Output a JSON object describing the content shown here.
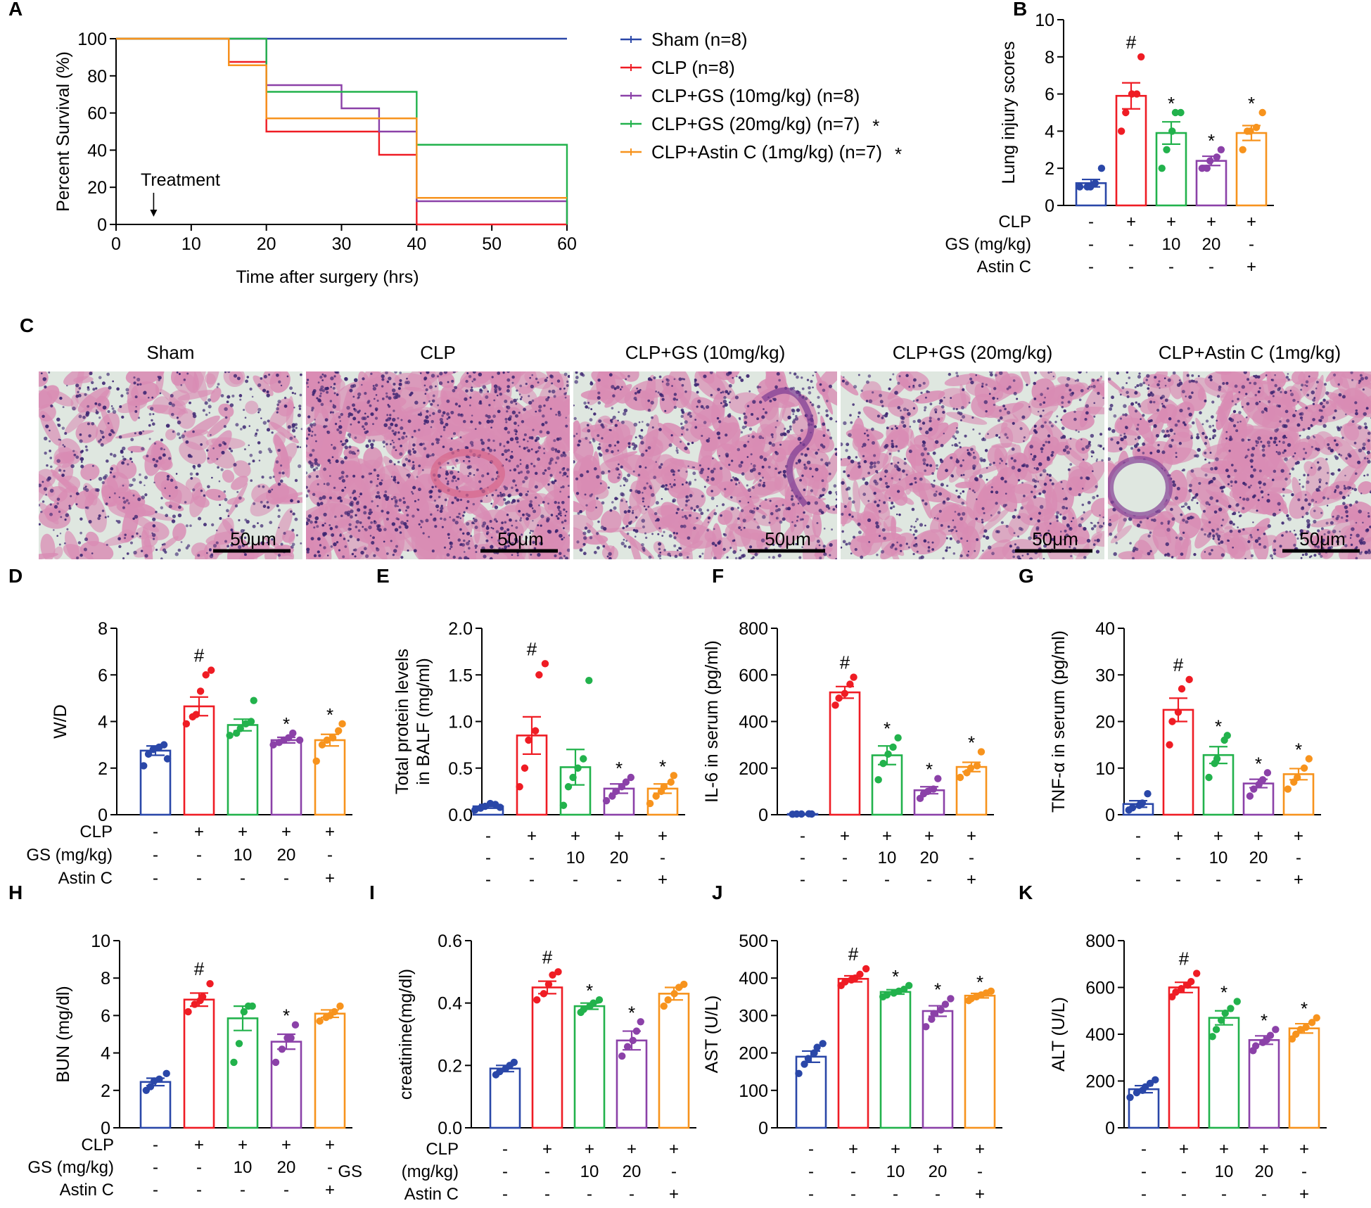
{
  "colors": {
    "Sham": "#2a47a8",
    "CLP": "#ef1c24",
    "GS10": "#8b41a8",
    "GS20": "#22b24c",
    "Astin": "#f7931d",
    "tissue_bg": "#dfe7e0",
    "tissue_pink": "#d98cb4",
    "tissue_nuclei": "#3b2470",
    "vessel": "#d7668a"
  },
  "design_rows": {
    "labels": [
      "CLP",
      "GS (mg/kg)",
      "Astin C"
    ],
    "labels_split": [
      "GS",
      "(mg/kg)"
    ],
    "rows": [
      [
        "-",
        "+",
        "+",
        "+",
        "+"
      ],
      [
        "-",
        "-",
        "10",
        "20",
        "-"
      ],
      [
        "-",
        "-",
        "-",
        "-",
        "+"
      ]
    ]
  },
  "panel_c": {
    "label": "C",
    "scale_bar": "50μm",
    "titles": [
      "Sham",
      "CLP",
      "CLP+GS (10mg/kg)",
      "CLP+GS (20mg/kg)",
      "CLP+Astin C (1mg/kg)"
    ],
    "densities": [
      0.3,
      0.85,
      0.5,
      0.45,
      0.55
    ]
  },
  "chart_data": [
    {
      "id": "A",
      "type": "line",
      "label": "A",
      "xlabel": "Time after surgery (hrs)",
      "ylabel": "Percent  Survival (%)",
      "xlim": [
        0,
        60
      ],
      "ylim": [
        0,
        100
      ],
      "xticks": [
        0,
        10,
        20,
        30,
        40,
        50,
        60
      ],
      "yticks": [
        0,
        20,
        40,
        60,
        80,
        100
      ],
      "annotation": {
        "text": "Treatment",
        "x": 5
      },
      "series": [
        {
          "name": "Sham (n=8)",
          "color_key": "Sham",
          "star": "",
          "x": [
            0,
            60
          ],
          "y": [
            100,
            100
          ]
        },
        {
          "name": "CLP (n=8)",
          "color_key": "CLP",
          "star": "",
          "x": [
            0,
            15,
            20,
            35,
            40,
            60
          ],
          "y": [
            100,
            87.5,
            50,
            37.5,
            0,
            0
          ]
        },
        {
          "name": "CLP+GS (10mg/kg) (n=8)",
          "color_key": "GS10",
          "star": "",
          "x": [
            0,
            20,
            30,
            35,
            40,
            60
          ],
          "y": [
            100,
            75,
            62.5,
            50,
            12.5,
            0
          ]
        },
        {
          "name": "CLP+GS (20mg/kg) (n=7)",
          "color_key": "GS20",
          "star": "*",
          "x": [
            0,
            20,
            40,
            60
          ],
          "y": [
            100,
            71.4,
            42.9,
            0
          ]
        },
        {
          "name": "CLP+Astin C (1mg/kg) (n=7)",
          "color_key": "Astin",
          "star": "*",
          "x": [
            0,
            15,
            20,
            40,
            60
          ],
          "y": [
            100,
            85.7,
            57.1,
            14.3,
            14.3
          ]
        }
      ]
    },
    {
      "id": "B",
      "type": "bar",
      "label": "B",
      "ylabel": "Lung injury scores",
      "ylim": [
        0,
        10
      ],
      "yticks": [
        0,
        2,
        4,
        6,
        8,
        10
      ],
      "values": [
        1.2,
        5.9,
        3.9,
        2.4,
        3.9
      ],
      "sem": [
        0.2,
        0.7,
        0.6,
        0.25,
        0.4
      ],
      "points": [
        [
          1,
          1,
          1,
          1.2,
          2
        ],
        [
          4,
          5,
          6,
          6,
          8
        ],
        [
          2,
          3,
          4,
          5,
          5
        ],
        [
          2,
          2,
          2.4,
          2.6,
          3
        ],
        [
          3,
          4,
          4,
          4.2,
          5
        ]
      ],
      "sig": [
        "",
        "#",
        "*",
        "*",
        "*"
      ],
      "rowlabel_style": "plain"
    },
    {
      "id": "D",
      "type": "bar",
      "label": "D",
      "ylabel": "W/D",
      "ylim": [
        0,
        8
      ],
      "yticks": [
        0,
        2,
        4,
        6,
        8
      ],
      "values": [
        2.75,
        4.65,
        3.85,
        3.2,
        3.2
      ],
      "sem": [
        0.2,
        0.4,
        0.25,
        0.12,
        0.25
      ],
      "points": [
        [
          2.1,
          2.6,
          2.8,
          2.9,
          3.0,
          2.4
        ],
        [
          3.9,
          4.2,
          4.3,
          5.3,
          6.0,
          6.2
        ],
        [
          3.4,
          3.5,
          3.7,
          3.9,
          4.0,
          4.9
        ],
        [
          3.0,
          3.1,
          3.2,
          3.3,
          3.5,
          3.2
        ],
        [
          2.3,
          3.0,
          3.2,
          3.3,
          3.6,
          3.9
        ]
      ],
      "sig": [
        "",
        "#",
        "",
        "*",
        "*"
      ],
      "rowlabel_style": "plain"
    },
    {
      "id": "E",
      "type": "bar",
      "label": "E",
      "ylabel": "Total protein levels in BALF (mg/ml)",
      "ylim": [
        0,
        2.0
      ],
      "yticks": [
        0.0,
        0.5,
        1.0,
        1.5,
        2.0
      ],
      "values": [
        0.09,
        0.85,
        0.51,
        0.28,
        0.28
      ],
      "sem": [
        0.02,
        0.2,
        0.19,
        0.05,
        0.05
      ],
      "points": [
        [
          0.05,
          0.07,
          0.09,
          0.12,
          0.11,
          0.08
        ],
        [
          0.3,
          0.5,
          0.8,
          0.9,
          1.5,
          1.62
        ],
        [
          0.1,
          0.3,
          0.4,
          0.5,
          0.6,
          1.44
        ],
        [
          0.15,
          0.2,
          0.25,
          0.3,
          0.35,
          0.4
        ],
        [
          0.12,
          0.2,
          0.25,
          0.3,
          0.35,
          0.42
        ]
      ],
      "sig": [
        "",
        "#",
        "",
        "*",
        "*"
      ],
      "rowlabel_style": "none"
    },
    {
      "id": "F",
      "type": "bar",
      "label": "F",
      "ylabel": "IL-6 in serum (pg/ml)",
      "ylim": [
        0,
        800
      ],
      "yticks": [
        0,
        200,
        400,
        600,
        800
      ],
      "values": [
        3,
        525,
        255,
        105,
        205
      ],
      "sem": [
        1,
        25,
        40,
        15,
        20
      ],
      "points": [
        [
          2,
          3,
          3,
          4,
          3
        ],
        [
          470,
          500,
          520,
          560,
          590
        ],
        [
          150,
          220,
          260,
          290,
          330
        ],
        [
          70,
          90,
          100,
          110,
          155
        ],
        [
          160,
          180,
          200,
          210,
          270
        ]
      ],
      "sig": [
        "",
        "#",
        "*",
        "*",
        "*"
      ],
      "rowlabel_style": "none"
    },
    {
      "id": "G",
      "type": "bar",
      "label": "G",
      "ylabel": "TNF-α in serum (pg/ml)",
      "ylim": [
        0,
        40
      ],
      "yticks": [
        0,
        10,
        20,
        30,
        40
      ],
      "values": [
        2.3,
        22.5,
        12.8,
        6.7,
        8.7
      ],
      "sem": [
        0.7,
        2.5,
        1.8,
        0.9,
        1.2
      ],
      "points": [
        [
          1,
          1.5,
          2,
          2.5,
          4.5
        ],
        [
          15,
          20,
          22,
          27,
          29
        ],
        [
          8,
          11,
          12,
          16,
          17
        ],
        [
          4,
          5.5,
          6.5,
          7.5,
          9
        ],
        [
          5.5,
          7,
          8,
          10,
          12
        ]
      ],
      "sig": [
        "",
        "#",
        "*",
        "*",
        "*"
      ],
      "rowlabel_style": "none"
    },
    {
      "id": "H",
      "type": "bar",
      "label": "H",
      "ylabel": "BUN (mg/dl)",
      "ylim": [
        0,
        10
      ],
      "yticks": [
        0,
        2,
        4,
        6,
        8,
        10
      ],
      "values": [
        2.45,
        6.85,
        5.85,
        4.6,
        6.1
      ],
      "sem": [
        0.2,
        0.35,
        0.65,
        0.4,
        0.2
      ],
      "points": [
        [
          2.0,
          2.2,
          2.5,
          2.6,
          2.9
        ],
        [
          6.2,
          6.6,
          6.8,
          7.0,
          7.7
        ],
        [
          3.5,
          4.5,
          6.2,
          6.5,
          6.5
        ],
        [
          3.5,
          4.2,
          4.8,
          4.8,
          5.5
        ],
        [
          5.7,
          5.9,
          6.0,
          6.2,
          6.5
        ]
      ],
      "sig": [
        "",
        "#",
        "",
        "*",
        ""
      ],
      "rowlabel_style": "plain"
    },
    {
      "id": "I",
      "type": "bar",
      "label": "I",
      "ylabel": "creatinine(mg/dl)",
      "ylim": [
        0,
        0.6
      ],
      "yticks": [
        0.0,
        0.2,
        0.4,
        0.6
      ],
      "values": [
        0.19,
        0.45,
        0.39,
        0.28,
        0.43
      ],
      "sem": [
        0.01,
        0.02,
        0.01,
        0.03,
        0.02
      ],
      "points": [
        [
          0.17,
          0.18,
          0.19,
          0.2,
          0.21
        ],
        [
          0.41,
          0.43,
          0.46,
          0.49,
          0.5
        ],
        [
          0.37,
          0.38,
          0.39,
          0.4,
          0.41
        ],
        [
          0.23,
          0.26,
          0.28,
          0.31,
          0.34
        ],
        [
          0.39,
          0.41,
          0.43,
          0.45,
          0.46
        ]
      ],
      "sig": [
        "",
        "#",
        "*",
        "*",
        ""
      ],
      "rowlabel_style": "split"
    },
    {
      "id": "J",
      "type": "bar",
      "label": "J",
      "ylabel": "AST (U/L)",
      "ylim": [
        0,
        500
      ],
      "yticks": [
        0,
        100,
        200,
        300,
        400,
        500
      ],
      "values": [
        190,
        398,
        363,
        312,
        353
      ],
      "sem": [
        15,
        8,
        6,
        14,
        6
      ],
      "points": [
        [
          145,
          170,
          185,
          200,
          215,
          225
        ],
        [
          380,
          390,
          395,
          400,
          410,
          425
        ],
        [
          350,
          355,
          360,
          365,
          370,
          380
        ],
        [
          270,
          290,
          305,
          315,
          330,
          345
        ],
        [
          340,
          345,
          350,
          355,
          360,
          365
        ]
      ],
      "sig": [
        "",
        "#",
        "*",
        "*",
        "*"
      ],
      "rowlabel_style": "none"
    },
    {
      "id": "K",
      "type": "bar",
      "label": "K",
      "ylabel": "ALT (U/L)",
      "ylim": [
        0,
        800
      ],
      "yticks": [
        0,
        200,
        400,
        600,
        800
      ],
      "values": [
        165,
        600,
        470,
        375,
        425
      ],
      "sem": [
        15,
        22,
        30,
        18,
        20
      ],
      "points": [
        [
          130,
          150,
          160,
          175,
          190,
          205
        ],
        [
          560,
          580,
          595,
          610,
          625,
          660
        ],
        [
          390,
          420,
          460,
          490,
          510,
          540
        ],
        [
          330,
          350,
          365,
          375,
          395,
          420
        ],
        [
          380,
          400,
          420,
          430,
          450,
          470
        ]
      ],
      "sig": [
        "",
        "#",
        "*",
        "*",
        "*"
      ],
      "rowlabel_style": "none"
    }
  ]
}
